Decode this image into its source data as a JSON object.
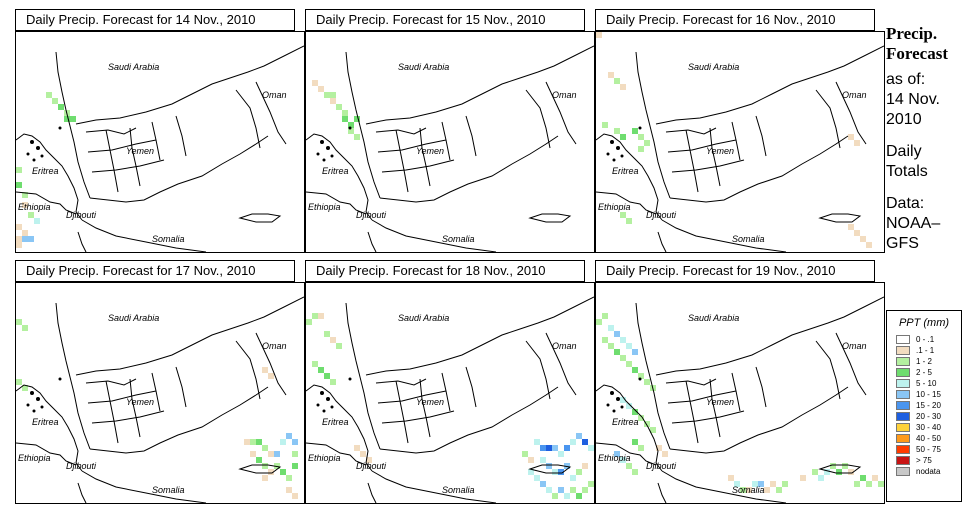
{
  "panels": [
    {
      "title": "Daily Precip. Forecast for  14 Nov., 2010"
    },
    {
      "title": "Daily Precip. Forecast for  15 Nov., 2010"
    },
    {
      "title": "Daily Precip. Forecast for  16 Nov., 2010"
    },
    {
      "title": "Daily Precip. Forecast for  17 Nov., 2010"
    },
    {
      "title": "Daily Precip. Forecast for  18 Nov., 2010"
    },
    {
      "title": "Daily Precip. Forecast for  19 Nov., 2010"
    }
  ],
  "map_labels": {
    "saudi": "Saudi Arabia",
    "oman": "Oman",
    "yemen": "Yemen",
    "eritrea": "Eritrea",
    "ethiopia": "Ethiopia",
    "djibouti": "Djibouti",
    "somalia": "Somalia"
  },
  "sidebar": {
    "title_line1": "Precip.",
    "title_line2": "Forecast",
    "asof": "as of:",
    "date_line1": "14 Nov.",
    "date_line2": "2010",
    "daily_line1": "Daily",
    "daily_line2": "Totals",
    "data_line1": "Data:",
    "data_line2": "NOAA–",
    "data_line3": "GFS"
  },
  "legend": {
    "title": "PPT (mm)",
    "items": [
      {
        "label": "0 - .1",
        "color": "#ffffff"
      },
      {
        "label": ".1 - 1",
        "color": "#f2dcc0"
      },
      {
        "label": "1 - 2",
        "color": "#b4f0a0"
      },
      {
        "label": "2 - 5",
        "color": "#6fdd6f"
      },
      {
        "label": "5 - 10",
        "color": "#bdf2ee"
      },
      {
        "label": "10 - 15",
        "color": "#8ac6f5"
      },
      {
        "label": "15 - 20",
        "color": "#4a95ef"
      },
      {
        "label": "20 - 30",
        "color": "#1e5fe0"
      },
      {
        "label": "30 - 40",
        "color": "#ffd23a"
      },
      {
        "label": "40 - 50",
        "color": "#ff9a1a"
      },
      {
        "label": "50 - 75",
        "color": "#ff3c00"
      },
      {
        "label": "> 75",
        "color": "#c81414"
      },
      {
        "label": "nodata",
        "color": "#c8c8c8"
      }
    ]
  }
}
